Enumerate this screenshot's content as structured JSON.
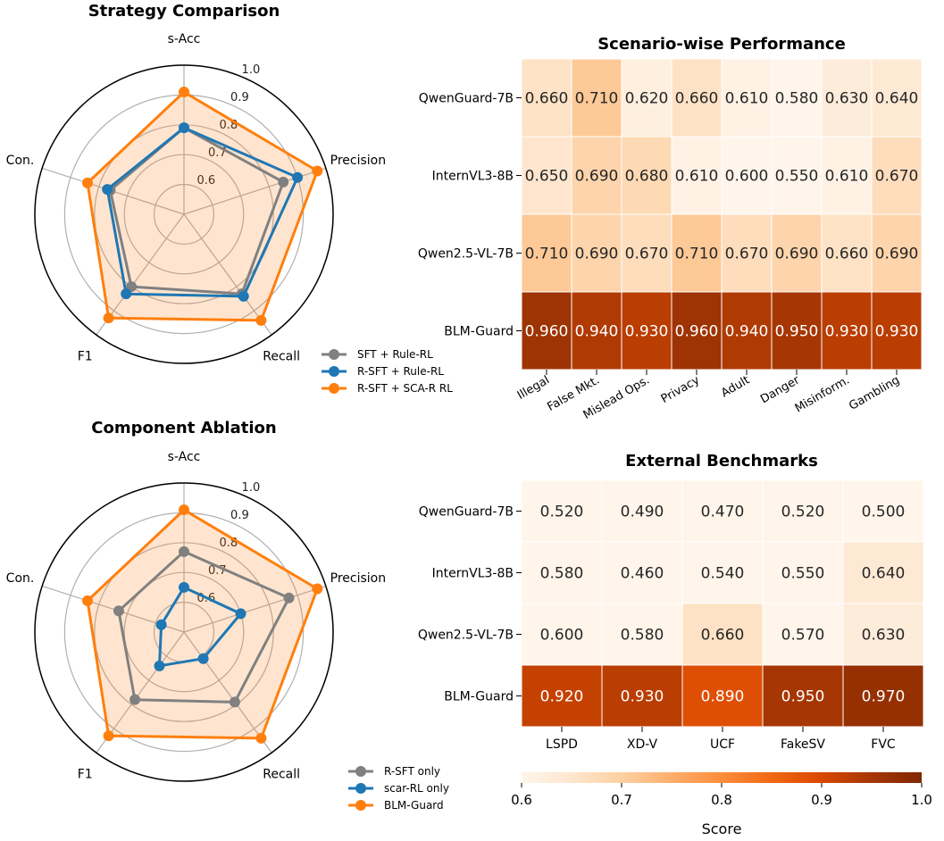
{
  "chart_data": [
    {
      "type": "radar",
      "title": "Strategy Comparison",
      "axes": [
        "s-Acc",
        "Precision",
        "Recall",
        "F1",
        "Con."
      ],
      "radial_ticks": [
        "0.6",
        "0.7",
        "0.8",
        "0.9",
        "1.0"
      ],
      "rlim": [
        0.5,
        1.0
      ],
      "series": [
        {
          "name": "SFT + Rule-RL",
          "color": "#808080",
          "values": [
            0.79,
            0.85,
            0.83,
            0.8,
            0.76
          ]
        },
        {
          "name": "R-SFT + Rule-RL",
          "color": "#1f77b4",
          "values": [
            0.79,
            0.9,
            0.84,
            0.83,
            0.77
          ]
        },
        {
          "name": "R-SFT + SCA-R RL",
          "color": "#ff7f0e",
          "values": [
            0.91,
            0.97,
            0.94,
            0.93,
            0.84
          ]
        }
      ]
    },
    {
      "type": "heatmap",
      "title": "Scenario-wise Performance",
      "rows": [
        "QwenGuard-7B",
        "InternVL3-8B",
        "Qwen2.5-VL-7B",
        "BLM-Guard"
      ],
      "columns": [
        "Illegal",
        "False Mkt.",
        "Mislead Ops.",
        "Privacy",
        "Adult",
        "Danger",
        "Misinform.",
        "Gambling"
      ],
      "values": [
        [
          0.66,
          0.71,
          0.62,
          0.66,
          0.61,
          0.58,
          0.63,
          0.64
        ],
        [
          0.65,
          0.69,
          0.68,
          0.61,
          0.6,
          0.55,
          0.61,
          0.67
        ],
        [
          0.71,
          0.69,
          0.67,
          0.71,
          0.67,
          0.69,
          0.66,
          0.69
        ],
        [
          0.96,
          0.94,
          0.93,
          0.96,
          0.94,
          0.95,
          0.93,
          0.93
        ]
      ],
      "labels": [
        [
          "0.660",
          "0.710",
          "0.620",
          "0.660",
          "0.610",
          "0.580",
          "0.630",
          "0.640"
        ],
        [
          "0.650",
          "0.690",
          "0.680",
          "0.610",
          "0.600",
          "0.550",
          "0.610",
          "0.670"
        ],
        [
          "0.710",
          "0.690",
          "0.670",
          "0.710",
          "0.670",
          "0.690",
          "0.660",
          "0.690"
        ],
        [
          "0.960",
          "0.940",
          "0.930",
          "0.960",
          "0.940",
          "0.950",
          "0.930",
          "0.930"
        ]
      ]
    },
    {
      "type": "radar",
      "title": "Component Ablation",
      "axes": [
        "s-Acc",
        "Precision",
        "Recall",
        "F1",
        "Con."
      ],
      "radial_ticks": [
        "0.6",
        "0.7",
        "0.8",
        "0.9",
        "1.0"
      ],
      "rlim": [
        0.5,
        1.0
      ],
      "series": [
        {
          "name": "R-SFT only",
          "color": "#808080",
          "values": [
            0.77,
            0.87,
            0.79,
            0.78,
            0.73
          ]
        },
        {
          "name": "scar-RL only",
          "color": "#1f77b4",
          "values": [
            0.65,
            0.7,
            0.61,
            0.64,
            0.58
          ]
        },
        {
          "name": "BLM-Guard",
          "color": "#ff7f0e",
          "values": [
            0.91,
            0.97,
            0.94,
            0.93,
            0.84
          ]
        }
      ]
    },
    {
      "type": "heatmap",
      "title": "External Benchmarks",
      "rows": [
        "QwenGuard-7B",
        "InternVL3-8B",
        "Qwen2.5-VL-7B",
        "BLM-Guard"
      ],
      "columns": [
        "LSPD",
        "XD-V",
        "UCF",
        "FakeSV",
        "FVC"
      ],
      "values": [
        [
          0.52,
          0.49,
          0.47,
          0.52,
          0.5
        ],
        [
          0.58,
          0.46,
          0.54,
          0.55,
          0.64
        ],
        [
          0.6,
          0.58,
          0.66,
          0.57,
          0.63
        ],
        [
          0.92,
          0.93,
          0.89,
          0.95,
          0.97
        ]
      ],
      "labels": [
        [
          "0.520",
          "0.490",
          "0.470",
          "0.520",
          "0.500"
        ],
        [
          "0.580",
          "0.460",
          "0.540",
          "0.550",
          "0.640"
        ],
        [
          "0.600",
          "0.580",
          "0.660",
          "0.570",
          "0.630"
        ],
        [
          "0.920",
          "0.930",
          "0.890",
          "0.950",
          "0.970"
        ]
      ]
    }
  ],
  "colorbar": {
    "label": "Score",
    "ticks": [
      "0.6",
      "0.7",
      "0.8",
      "0.9",
      "1.0"
    ],
    "range": [
      0.6,
      1.0
    ],
    "colors": [
      "#fff5eb",
      "#fee6ce",
      "#fdd0a2",
      "#fdae6b",
      "#fd8d3c",
      "#f16913",
      "#d94801",
      "#a63603",
      "#7f2704"
    ]
  }
}
